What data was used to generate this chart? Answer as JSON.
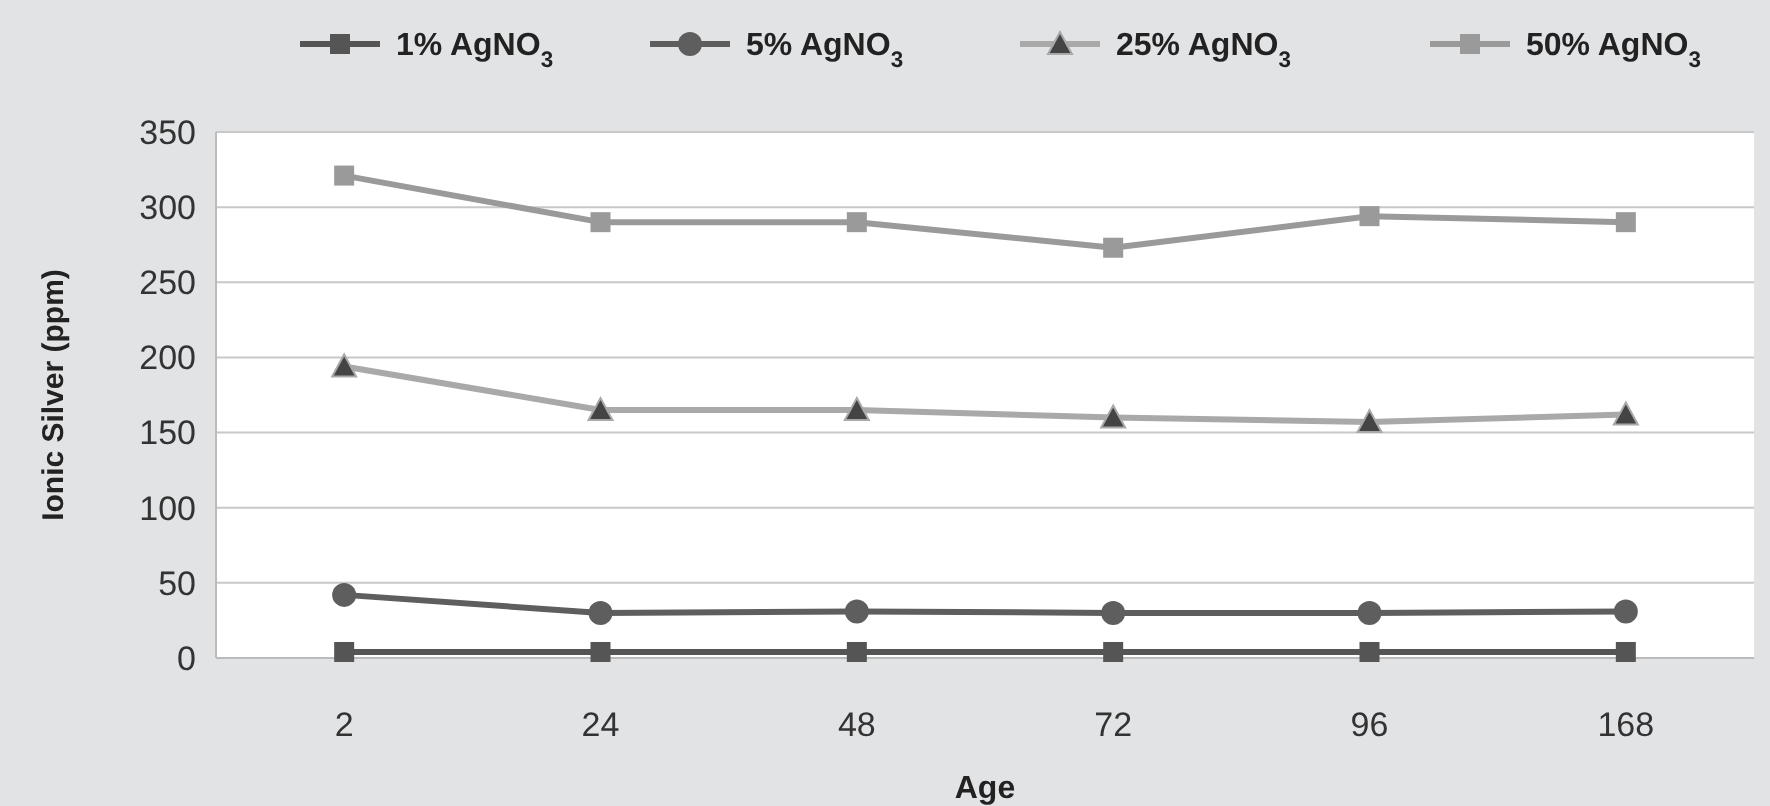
{
  "chart_data": {
    "type": "line",
    "xlabel": "Age",
    "ylabel": "Ionic Silver (ppm)",
    "categories": [
      "2",
      "24",
      "48",
      "72",
      "96",
      "168"
    ],
    "ylim": [
      0,
      350
    ],
    "yticks": [
      0,
      50,
      100,
      150,
      200,
      250,
      300,
      350
    ],
    "grid": "y",
    "legend": "top",
    "series": [
      {
        "name": "1% AgNO$_{3}$",
        "color": "#555555",
        "marker": "square",
        "values": [
          4,
          4,
          4,
          4,
          4,
          4
        ]
      },
      {
        "name": "5% AgNO$_{3}$",
        "color": "#5e5e5e",
        "marker": "circle",
        "values": [
          42,
          30,
          31,
          30,
          30,
          31
        ]
      },
      {
        "name": "25% AgNO$_{3}$",
        "color": "#a9a9a9",
        "marker": "triangle",
        "values": [
          194,
          165,
          165,
          160,
          157,
          162
        ]
      },
      {
        "name": "50% AgNO$_{3}$",
        "color": "#9a9a9a",
        "marker": "square",
        "values": [
          321,
          290,
          290,
          273,
          294,
          290
        ]
      }
    ]
  }
}
